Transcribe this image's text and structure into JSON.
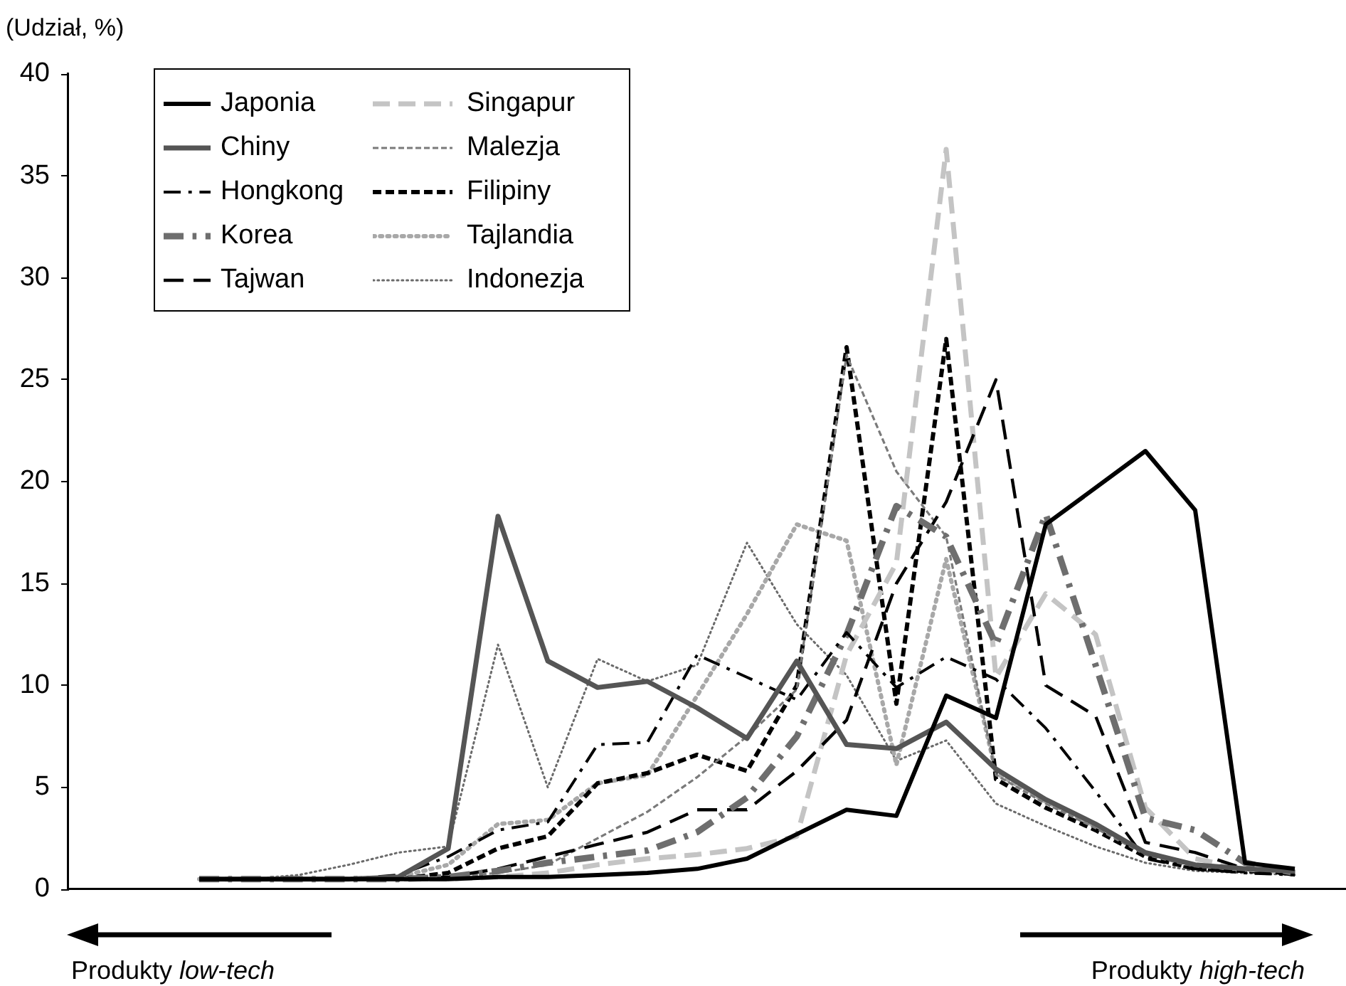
{
  "chart_data": {
    "type": "line",
    "ylabel": "(Udział, %)",
    "annotations": [
      "Produkty low-tech",
      "Produkty high-tech"
    ],
    "categories": [
      null,
      null,
      null,
      null,
      null,
      null,
      null,
      null,
      null,
      null,
      null,
      null,
      null,
      null,
      null,
      null,
      null,
      null,
      null,
      null,
      null,
      null,
      null
    ],
    "ylim": [
      0,
      40
    ],
    "yticks": [
      0,
      5,
      10,
      15,
      20,
      25,
      30,
      35,
      40
    ],
    "grid": false,
    "legend": "top left",
    "tick_labels": "y",
    "marker": "none",
    "series": [
      {
        "name": "Japonia",
        "color": "#000000",
        "line_style": "solid",
        "values": [
          0.5,
          0.5,
          0.5,
          0.5,
          0.5,
          0.5,
          0.6,
          0.6,
          0.7,
          0.8,
          1,
          1.5,
          2.7,
          3.9,
          3.6,
          9.5,
          8.4,
          17.9,
          19.7,
          21.5,
          18.6,
          1.3,
          1
        ]
      },
      {
        "name": "Chiny",
        "color": "#555555",
        "line_style": "solid",
        "values": [
          0.5,
          0.5,
          0.5,
          0.5,
          0.6,
          2,
          18.3,
          11.2,
          9.9,
          10.2,
          8.9,
          7.4,
          11.2,
          7.1,
          6.9,
          8.2,
          5.9,
          4.4,
          3.2,
          1.8,
          1.2,
          1,
          0.9
        ]
      },
      {
        "name": "Hongkong",
        "color": "#000000",
        "line_style": "dashdot",
        "values": [
          0.5,
          0.5,
          0.5,
          0.5,
          0.7,
          1.6,
          2.9,
          3.3,
          7.1,
          7.2,
          11.5,
          10.4,
          9.3,
          12.6,
          9.9,
          11.4,
          10.3,
          7.9,
          4.8,
          1.5,
          1,
          0.8,
          0.7
        ]
      },
      {
        "name": "Korea",
        "color": "#6e6e6e",
        "line_style": "dashdot",
        "values": [
          0.5,
          0.5,
          0.5,
          0.5,
          0.5,
          0.6,
          0.9,
          1.3,
          1.6,
          1.9,
          2.8,
          4.5,
          7.5,
          12.5,
          18.8,
          17.3,
          12,
          18.4,
          11,
          3.5,
          2.9,
          1.3,
          0.8
        ]
      },
      {
        "name": "Tajwan",
        "color": "#000000",
        "line_style": "dashed",
        "values": [
          0.5,
          0.5,
          0.5,
          0.5,
          0.5,
          0.6,
          1,
          1.6,
          2.2,
          2.8,
          3.9,
          3.9,
          5.8,
          8.3,
          15,
          19,
          25,
          10,
          8.5,
          2.3,
          1.8,
          1,
          0.7
        ]
      },
      {
        "name": "Singapur",
        "color": "#c4c4c4",
        "line_style": "dashed",
        "values": [
          0.5,
          0.5,
          0.5,
          0.5,
          0.5,
          0.5,
          0.6,
          0.8,
          1.2,
          1.5,
          1.7,
          2,
          2.6,
          11.5,
          16,
          36.3,
          10.4,
          14.5,
          12.5,
          4,
          1.5,
          1,
          0.8
        ]
      },
      {
        "name": "Malezja",
        "color": "#7a7a7a",
        "line_style": "dashed",
        "values": [
          0.5,
          0.5,
          0.5,
          0.5,
          0.5,
          0.6,
          0.8,
          1.2,
          2.5,
          3.8,
          5.5,
          7.5,
          9.8,
          26.2,
          20.5,
          17.3,
          5.6,
          4.2,
          3,
          1.7,
          1.1,
          1,
          0.8
        ]
      },
      {
        "name": "Filipiny",
        "color": "#000000",
        "line_style": "dashed",
        "values": [
          0.5,
          0.5,
          0.5,
          0.5,
          0.5,
          0.8,
          2,
          2.6,
          5.2,
          5.7,
          6.6,
          5.8,
          10,
          26.6,
          9.1,
          27,
          5.4,
          4,
          2.9,
          1.6,
          1,
          0.9,
          0.8
        ]
      },
      {
        "name": "Tajlandia",
        "color": "#a8a8a8",
        "line_style": "dotted",
        "values": [
          0.5,
          0.5,
          0.5,
          0.5,
          0.6,
          1.2,
          3.2,
          3.4,
          5.2,
          5.6,
          9.5,
          13.5,
          17.9,
          17.1,
          6.1,
          16.2,
          5.7,
          4.3,
          3.1,
          1.8,
          1.2,
          1,
          0.8
        ]
      },
      {
        "name": "Indonezja",
        "color": "#6a6a6a",
        "line_style": "dotted",
        "values": [
          0.5,
          0.5,
          0.7,
          1.2,
          1.8,
          2.1,
          12,
          5,
          11.3,
          10.2,
          11,
          17,
          13,
          10.5,
          6.3,
          7.3,
          4.2,
          3.1,
          2.1,
          1.3,
          0.9,
          0.8,
          0.7
        ]
      }
    ]
  }
}
